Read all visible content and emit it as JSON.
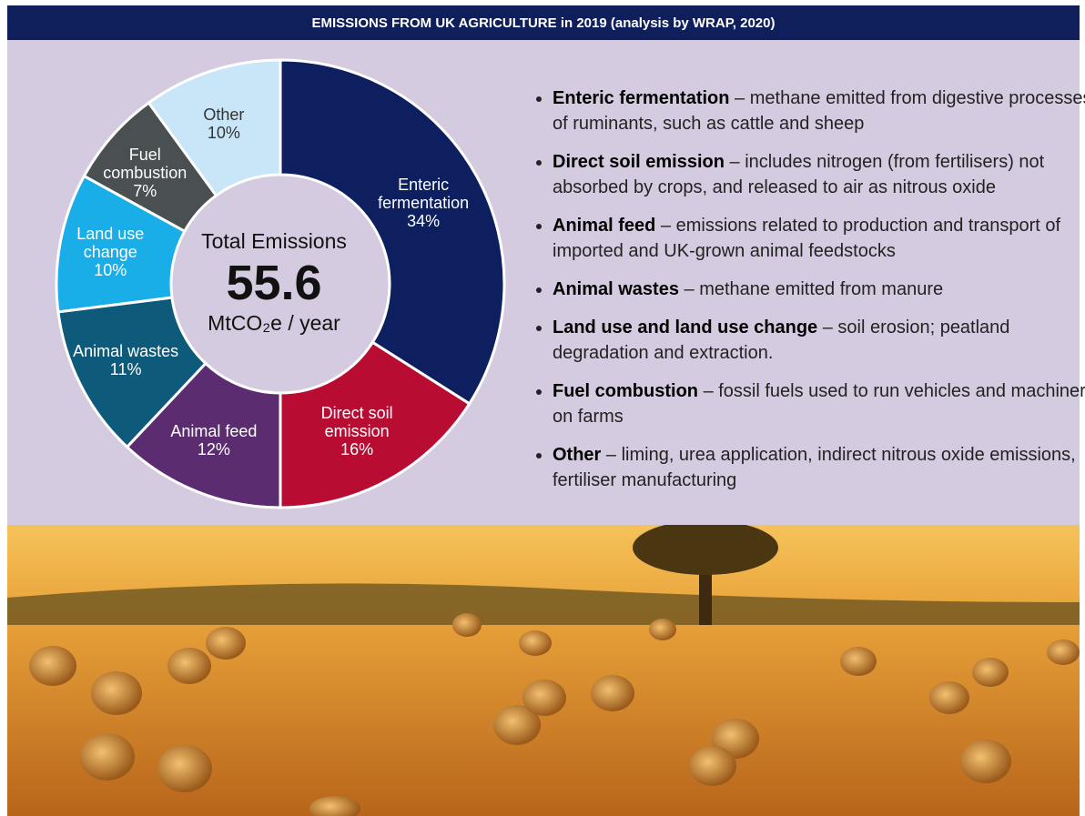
{
  "title": "EMISSIONS FROM UK AGRICULTURE in 2019 (analysis by WRAP, 2020)",
  "chart_data": {
    "type": "pie",
    "categories": [
      "Enteric fermentation",
      "Direct soil emission",
      "Animal feed",
      "Animal wastes",
      "Land use change",
      "Fuel combustion",
      "Other"
    ],
    "values": [
      34,
      16,
      12,
      11,
      10,
      7,
      10
    ],
    "value_labels": [
      "34%",
      "16%",
      "12%",
      "11%",
      "10%",
      "7%",
      "10%"
    ],
    "colors": [
      "#0d1f5e",
      "#b80c33",
      "#5b2c6f",
      "#0e5a7a",
      "#1aaee8",
      "#4a4f52",
      "#c8e6f8"
    ],
    "center": {
      "label": "Total Emissions",
      "value": 55.6,
      "unit": "MtCO₂e / year"
    }
  },
  "bullets": [
    {
      "term": "Enteric fermentation",
      "text": "– methane emitted from digestive processes of ruminants, such as cattle and sheep"
    },
    {
      "term": "Direct soil emission",
      "text": "– includes nitrogen (from fertilisers) not absorbed by crops, and released to air as nitrous oxide"
    },
    {
      "term": "Animal feed",
      "text": "– emissions related to production and transport of imported and UK-grown animal feedstocks"
    },
    {
      "term": "Animal wastes",
      "text": "– methane emitted from manure"
    },
    {
      "term": "Land use and land use change",
      "text": "– soil erosion; peatland degradation and extraction."
    },
    {
      "term": "Fuel combustion",
      "text": "– fossil fuels used to run vehicles and machinery on farms"
    },
    {
      "term": "Other",
      "text": "– liming, urea application, indirect nitrous oxide emissions, fertiliser manufacturing"
    }
  ]
}
